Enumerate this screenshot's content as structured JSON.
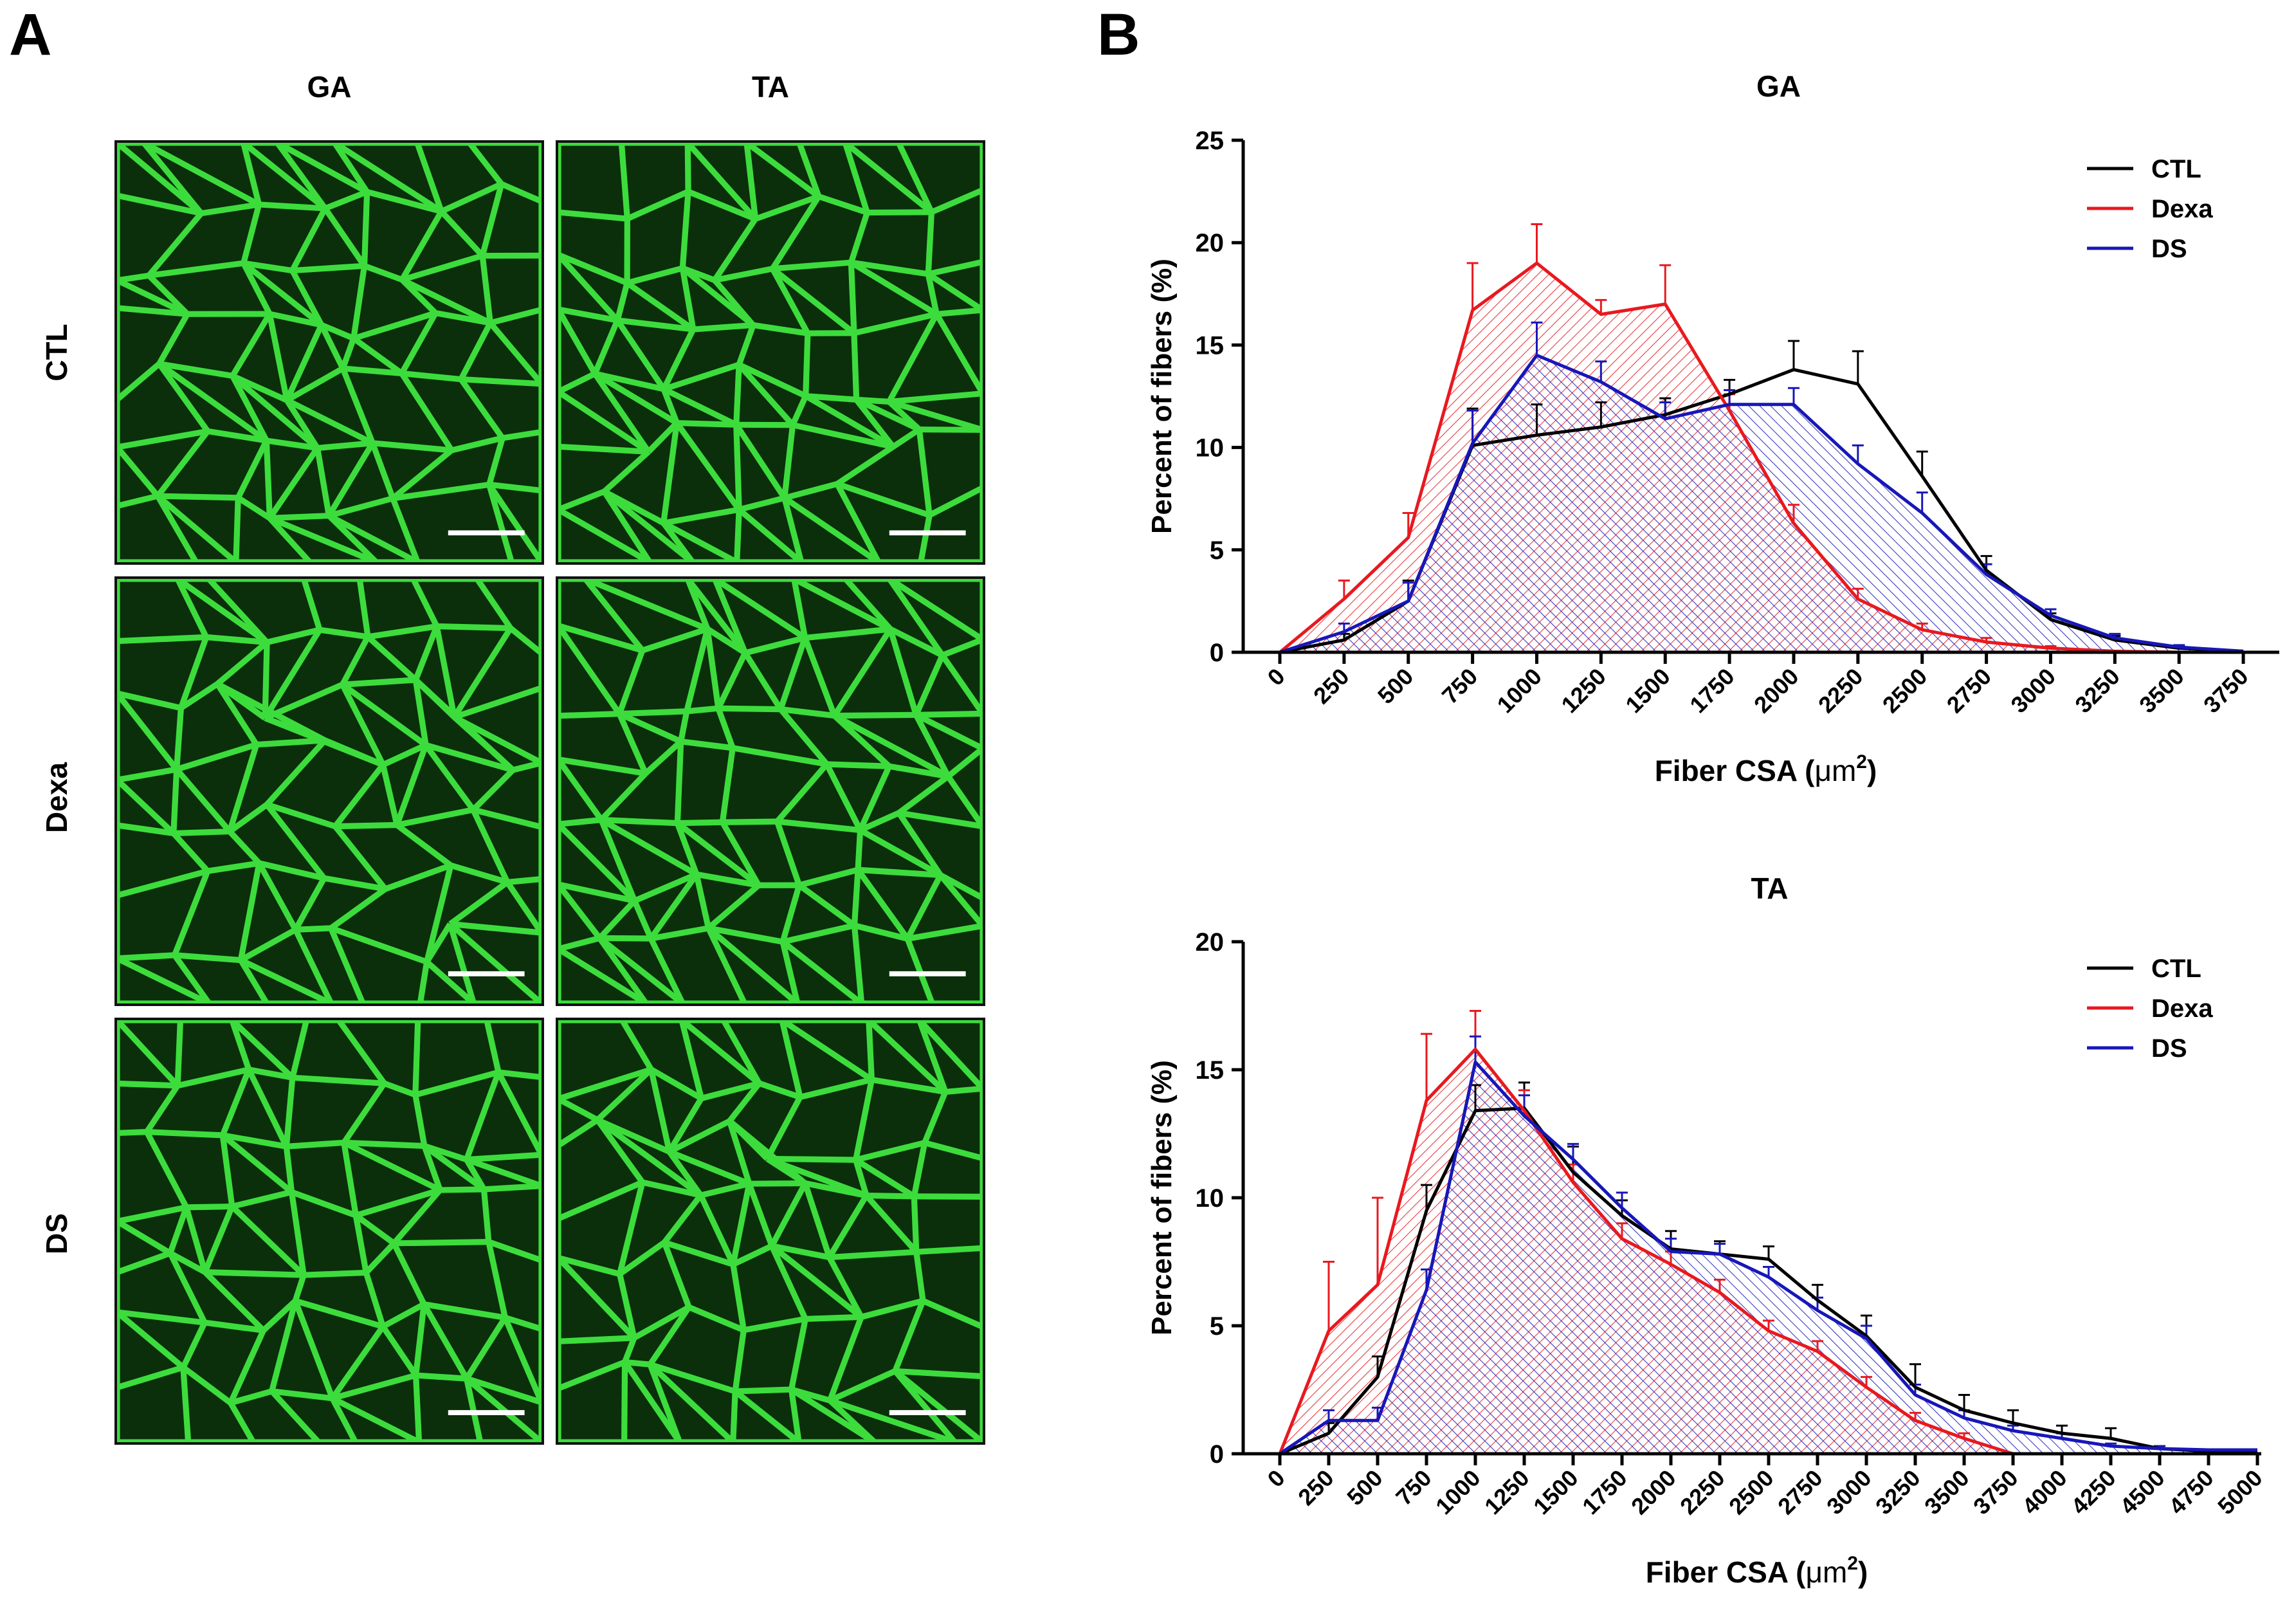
{
  "panel_a": {
    "letter": "A",
    "columns": [
      "GA",
      "TA"
    ],
    "rows": [
      "CTL",
      "Dexa",
      "DS"
    ],
    "image_description_icon": "laminin-stained-muscle-cross-section",
    "stain_color": "#3ddc3d"
  },
  "panel_b": {
    "letter": "B"
  },
  "colors": {
    "CTL": "#000000",
    "Dexa": "#e8191f",
    "DS": "#1717b8"
  },
  "chart_data": [
    {
      "type": "line",
      "fill": "hatched-area",
      "title": "GA",
      "xlabel": "Fiber CSA (μm²)",
      "xlabel_main": "Fiber CSA (",
      "xlabel_unit": "μm",
      "xlabel_sup": "2",
      "xlabel_close": ")",
      "ylabel": "Percent of fibers (%)",
      "ylim": [
        0,
        25
      ],
      "yticks": [
        0,
        5,
        10,
        15,
        20,
        25
      ],
      "xticks": [
        0,
        250,
        500,
        750,
        1000,
        1250,
        1500,
        1750,
        2000,
        2250,
        2500,
        2750,
        3000,
        3250,
        3500,
        3750
      ],
      "xlim": [
        0,
        3875
      ],
      "legend": "top-right",
      "series": [
        {
          "name": "CTL",
          "color": "#000000",
          "x": [
            0,
            250,
            500,
            750,
            1000,
            1250,
            1500,
            1750,
            2000,
            2250,
            2500,
            2750,
            3000,
            3250,
            3500,
            3750
          ],
          "values": [
            0,
            0.6,
            2.5,
            10.1,
            10.6,
            11.0,
            11.6,
            12.6,
            13.8,
            13.1,
            8.6,
            4.0,
            1.6,
            0.6,
            0.2,
            0.05
          ],
          "err": [
            0,
            0.3,
            1.0,
            1.8,
            1.5,
            1.2,
            0.8,
            0.7,
            1.4,
            1.6,
            1.2,
            0.7,
            0.3,
            0.2,
            0.1,
            0
          ]
        },
        {
          "name": "Dexa",
          "color": "#e8191f",
          "x": [
            0,
            250,
            500,
            750,
            1000,
            1250,
            1500,
            1750,
            2000,
            2250,
            2500,
            2750,
            3000,
            3250,
            3500,
            3750
          ],
          "values": [
            0,
            2.6,
            5.6,
            16.7,
            19.0,
            16.5,
            17.0,
            11.8,
            6.3,
            2.6,
            1.1,
            0.5,
            0.2,
            0.05,
            0,
            0
          ],
          "err": [
            0,
            0.9,
            1.2,
            2.3,
            1.9,
            0.7,
            1.9,
            0.8,
            0.9,
            0.5,
            0.3,
            0.2,
            0.1,
            0,
            0,
            0
          ]
        },
        {
          "name": "DS",
          "color": "#1717b8",
          "x": [
            0,
            250,
            500,
            750,
            1000,
            1250,
            1500,
            1750,
            2000,
            2250,
            2500,
            2750,
            3000,
            3250,
            3500,
            3750
          ],
          "values": [
            0,
            1.0,
            2.5,
            10.2,
            14.5,
            13.2,
            11.4,
            12.1,
            12.1,
            9.2,
            6.8,
            3.8,
            1.8,
            0.7,
            0.25,
            0.05
          ],
          "err": [
            0,
            0.4,
            0.9,
            1.6,
            1.6,
            1.0,
            0.8,
            0.7,
            0.8,
            0.9,
            1.0,
            0.5,
            0.3,
            0.2,
            0.1,
            0
          ]
        }
      ]
    },
    {
      "type": "line",
      "fill": "hatched-area",
      "title": "TA",
      "xlabel": "Fiber CSA (μm²)",
      "xlabel_main": "Fiber CSA (",
      "xlabel_unit": "μm",
      "xlabel_sup": "2",
      "xlabel_close": ")",
      "ylabel": "Percent of fibers (%)",
      "ylim": [
        0,
        20
      ],
      "yticks": [
        0,
        5,
        10,
        15,
        20
      ],
      "xticks": [
        0,
        250,
        500,
        750,
        1000,
        1250,
        1500,
        1750,
        2000,
        2250,
        2500,
        2750,
        3000,
        3250,
        3500,
        3750,
        4000,
        4250,
        4500,
        4750,
        5000
      ],
      "xlim": [
        0,
        5000
      ],
      "legend": "top-right",
      "series": [
        {
          "name": "CTL",
          "color": "#000000",
          "x": [
            0,
            250,
            500,
            750,
            1000,
            1250,
            1500,
            1750,
            2000,
            2250,
            2500,
            2750,
            3000,
            3250,
            3500,
            3750,
            4000,
            4250,
            4500,
            4750,
            5000
          ],
          "values": [
            0,
            0.8,
            3.0,
            9.5,
            13.4,
            13.5,
            11.0,
            9.3,
            8.0,
            7.8,
            7.6,
            6.0,
            4.6,
            2.6,
            1.7,
            1.2,
            0.8,
            0.6,
            0.2,
            0.1,
            0.1
          ],
          "err": [
            0,
            0.4,
            0.8,
            1.0,
            1.0,
            1.0,
            1.0,
            0.6,
            0.7,
            0.5,
            0.5,
            0.6,
            0.8,
            0.9,
            0.6,
            0.5,
            0.3,
            0.4,
            0.1,
            0,
            0
          ]
        },
        {
          "name": "Dexa",
          "color": "#e8191f",
          "x": [
            0,
            250,
            500,
            750,
            1000,
            1250,
            1500,
            1750,
            2000,
            2250,
            2500,
            2750,
            3000,
            3250,
            3500,
            3750,
            4000,
            4250,
            4500,
            4750,
            5000
          ],
          "values": [
            0,
            4.8,
            6.6,
            13.8,
            15.8,
            13.4,
            10.6,
            8.4,
            7.4,
            6.3,
            4.8,
            4.0,
            2.6,
            1.3,
            0.6,
            0,
            0,
            0,
            0,
            0,
            0
          ],
          "err": [
            0,
            2.7,
            3.4,
            2.6,
            1.5,
            0.8,
            0.7,
            0.6,
            0.5,
            0.5,
            0.4,
            0.4,
            0.4,
            0.3,
            0.2,
            0,
            0,
            0,
            0,
            0,
            0
          ]
        },
        {
          "name": "DS",
          "color": "#1717b8",
          "x": [
            0,
            250,
            500,
            750,
            1000,
            1250,
            1500,
            1750,
            2000,
            2250,
            2500,
            2750,
            3000,
            3250,
            3500,
            3750,
            4000,
            4250,
            4500,
            4750,
            5000
          ],
          "values": [
            0,
            1.3,
            1.3,
            6.4,
            15.3,
            13.2,
            11.5,
            9.6,
            7.9,
            7.8,
            6.9,
            5.6,
            4.5,
            2.3,
            1.4,
            0.9,
            0.6,
            0.3,
            0.2,
            0.15,
            0.15
          ],
          "err": [
            0,
            0.4,
            0.5,
            0.8,
            1.0,
            0.8,
            0.6,
            0.6,
            0.5,
            0.4,
            0.4,
            0.5,
            0.5,
            0.4,
            0.3,
            0.2,
            0.2,
            0.1,
            0.1,
            0,
            0
          ]
        }
      ]
    }
  ]
}
